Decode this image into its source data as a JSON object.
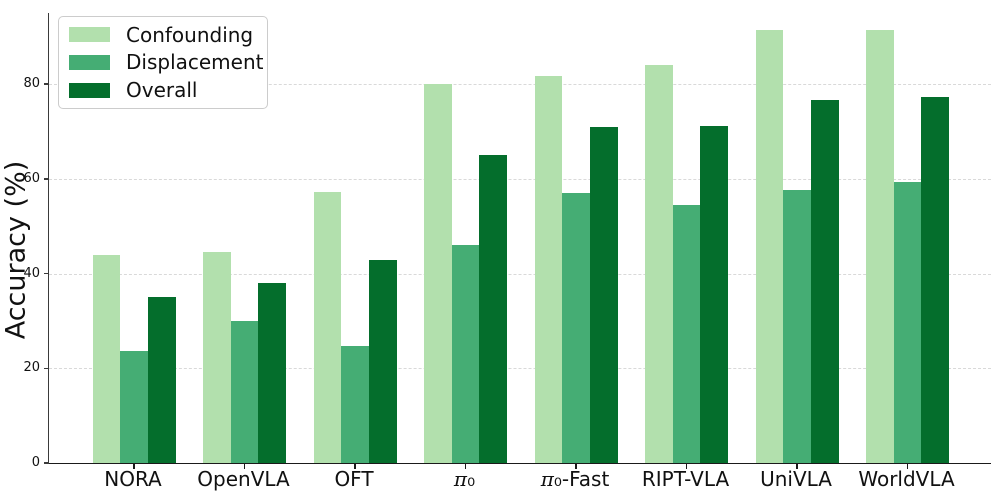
{
  "chart_data": {
    "type": "bar",
    "title": "",
    "xlabel": "",
    "ylabel": "Accuracy (%)",
    "categories": [
      "NORA",
      "OpenVLA",
      "OFT",
      "π₀",
      "π₀-Fast",
      "RIPT-VLA",
      "UniVLA",
      "WorldVLA"
    ],
    "series": [
      {
        "name": "Confounding",
        "color": "#b2e0ad",
        "values": [
          44.0,
          44.5,
          57.3,
          80.0,
          81.6,
          84.0,
          91.4,
          91.4
        ]
      },
      {
        "name": "Displacement",
        "color": "#45ad74",
        "values": [
          23.7,
          30.0,
          24.8,
          46.0,
          57.0,
          54.4,
          57.7,
          59.3
        ]
      },
      {
        "name": "Overall",
        "color": "#046e2c",
        "values": [
          35.0,
          38.0,
          42.8,
          65.0,
          70.9,
          71.1,
          76.6,
          77.2
        ]
      }
    ],
    "ylim": [
      0,
      95
    ],
    "yticks": [
      0,
      20,
      40,
      60,
      80
    ],
    "grid": "horizontal-dashed",
    "legend_position": "upper-left",
    "legend_labels": [
      "Confounding",
      "Displacement",
      "Overall"
    ]
  }
}
